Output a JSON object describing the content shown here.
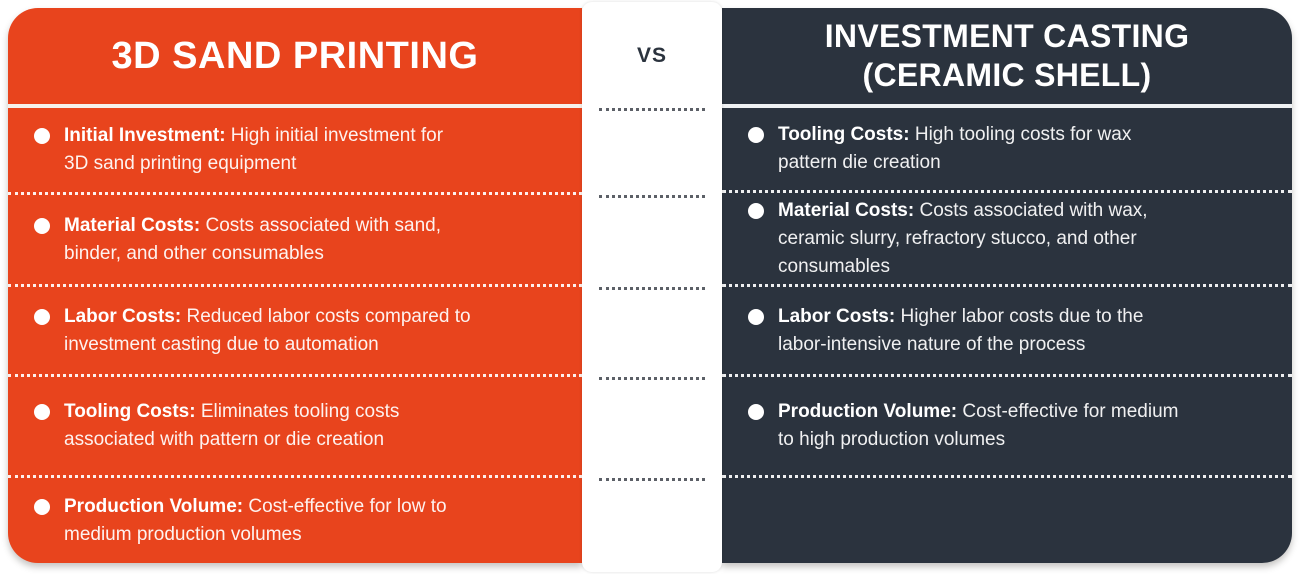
{
  "divider": {
    "vs_label": "VS"
  },
  "left_panel": {
    "title": "3D SAND PRINTING",
    "accent_color": "#E8441D",
    "text_color": "#FFFFFF",
    "items": [
      {
        "label": "Initial Investment:",
        "desc": " High initial investment for\n3D sand printing equipment"
      },
      {
        "label": "Material Costs:",
        "desc": " Costs associated with sand,\nbinder, and other consumables"
      },
      {
        "label": "Labor Costs:",
        "desc": " Reduced labor costs compared to\ninvestment casting due to automation"
      },
      {
        "label": "Tooling Costs:",
        "desc": " Eliminates tooling costs\nassociated with pattern or die creation"
      },
      {
        "label": "Production Volume:",
        "desc": " Cost-effective for low to\nmedium production volumes"
      }
    ]
  },
  "right_panel": {
    "title_line1": "INVESTMENT CASTING",
    "title_line2": "(CERAMIC SHELL)",
    "accent_color": "#2B333E",
    "text_color": "#FFFFFF",
    "items": [
      {
        "label": "Tooling Costs:",
        "desc": " High tooling costs for wax\npattern die creation"
      },
      {
        "label": "Material Costs:",
        "desc": " Costs associated with wax,\nceramic slurry, refractory stucco, and other\nconsumables"
      },
      {
        "label": "Labor Costs:",
        "desc": " Higher labor costs due to the\nlabor-intensive nature of the process"
      },
      {
        "label": "Production Volume:",
        "desc": " Cost-effective for medium\nto high production volumes"
      }
    ]
  },
  "icons": {
    "bullet": "filled-dot"
  }
}
